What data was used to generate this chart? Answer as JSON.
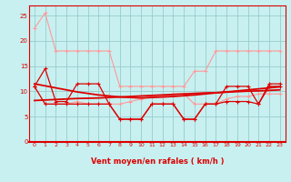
{
  "x": [
    0,
    1,
    2,
    3,
    4,
    5,
    6,
    7,
    8,
    9,
    10,
    11,
    12,
    13,
    14,
    15,
    16,
    17,
    18,
    19,
    20,
    21,
    22,
    23
  ],
  "series_pink_high": [
    22.5,
    25.5,
    18,
    18,
    18,
    18,
    18,
    18,
    11,
    11,
    11,
    11,
    11,
    11,
    11,
    14,
    14,
    18,
    18,
    18,
    18,
    18,
    18,
    18
  ],
  "series_pink_low": [
    11,
    7.5,
    7.5,
    7.5,
    8,
    7.5,
    7.5,
    7.5,
    7.5,
    8,
    8.5,
    9,
    9,
    9.5,
    9.5,
    7.5,
    7.5,
    7.5,
    8.5,
    9,
    9,
    9.5,
    9.5,
    9.5
  ],
  "series_red_high": [
    11,
    14.5,
    8,
    8,
    11.5,
    11.5,
    11.5,
    7.5,
    4.5,
    4.5,
    4.5,
    7.5,
    7.5,
    7.5,
    4.5,
    4.5,
    7.5,
    7.5,
    11,
    11,
    11,
    7.5,
    11.5,
    11.5
  ],
  "series_red_low": [
    11,
    7.5,
    7.5,
    7.5,
    7.5,
    7.5,
    7.5,
    7.5,
    4.5,
    4.5,
    4.5,
    7.5,
    7.5,
    7.5,
    4.5,
    4.5,
    7.5,
    7.5,
    8,
    8,
    8,
    7.5,
    11,
    11
  ],
  "trend1": [
    11.5,
    11.1,
    10.7,
    10.3,
    9.9,
    9.6,
    9.3,
    9.1,
    8.9,
    8.8,
    8.7,
    8.8,
    8.9,
    9.0,
    9.15,
    9.3,
    9.5,
    9.7,
    9.9,
    10.1,
    10.3,
    10.5,
    10.7,
    10.9
  ],
  "trend2": [
    8.2,
    8.3,
    8.4,
    8.5,
    8.6,
    8.65,
    8.7,
    8.8,
    8.9,
    9.0,
    9.1,
    9.2,
    9.3,
    9.4,
    9.5,
    9.6,
    9.7,
    9.75,
    9.85,
    9.95,
    10.05,
    10.1,
    10.2,
    10.3
  ],
  "bg_color": "#c8f0f0",
  "grid_color": "#99cccc",
  "pink_color": "#ff9999",
  "red_color": "#dd0000",
  "xlabel": "Vent moyen/en rafales ( km/h )",
  "ylim": [
    0,
    27
  ],
  "xlim": [
    -0.5,
    23.5
  ],
  "yticks": [
    0,
    5,
    10,
    15,
    20,
    25
  ],
  "xticks": [
    0,
    1,
    2,
    3,
    4,
    5,
    6,
    7,
    8,
    9,
    10,
    11,
    12,
    13,
    14,
    15,
    16,
    17,
    18,
    19,
    20,
    21,
    22,
    23
  ],
  "wind_symbols": [
    "→",
    "→",
    "→",
    "↘",
    "↘",
    "↘",
    "↘",
    "↓",
    "↓",
    "↙",
    "↓",
    "↖",
    "←",
    "↖",
    "↑",
    "←",
    "↖",
    "↖",
    "↖",
    "↖",
    "↖",
    "↑",
    "↑",
    "↑"
  ]
}
